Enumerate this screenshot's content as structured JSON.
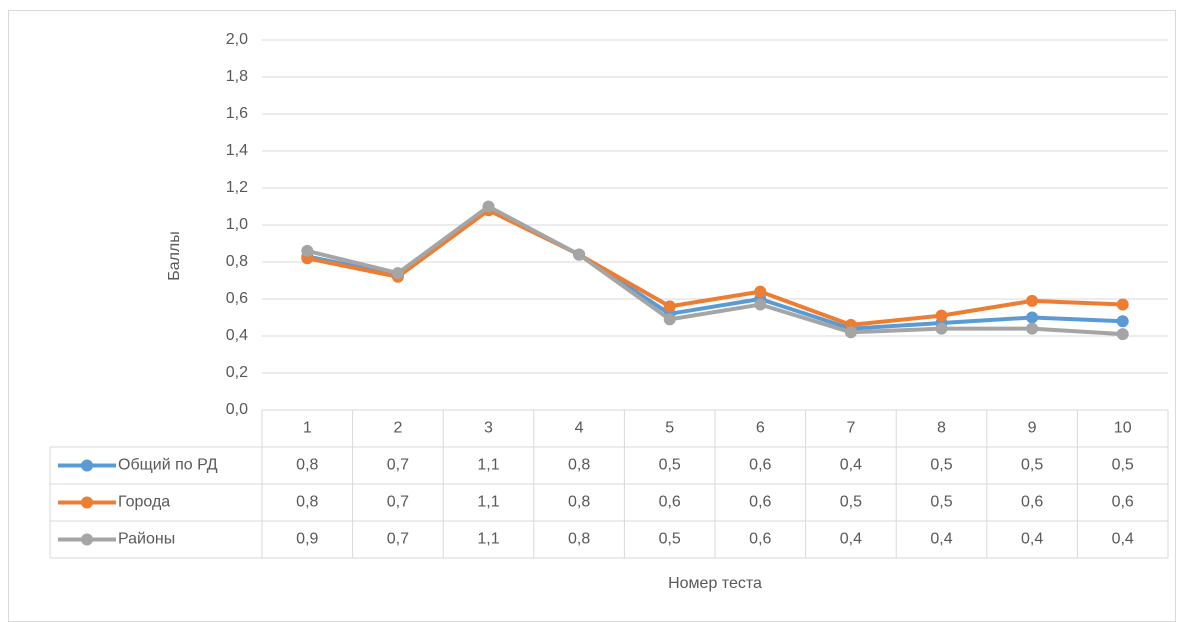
{
  "chart_data": {
    "type": "line",
    "x_label": "Номер теста",
    "y_label": "Баллы",
    "categories": [
      "1",
      "2",
      "3",
      "4",
      "5",
      "6",
      "7",
      "8",
      "9",
      "10"
    ],
    "series": [
      {
        "name": "Общий по РД",
        "color": "#5b9bd5",
        "values": [
          0.83,
          0.73,
          1.09,
          0.84,
          0.52,
          0.6,
          0.44,
          0.47,
          0.5,
          0.48
        ],
        "value_labels": [
          "0,8",
          "0,7",
          "1,1",
          "0,8",
          "0,5",
          "0,6",
          "0,4",
          "0,5",
          "0,5",
          "0,5"
        ]
      },
      {
        "name": "Города",
        "color": "#ed7d31",
        "values": [
          0.82,
          0.72,
          1.08,
          0.84,
          0.56,
          0.64,
          0.46,
          0.51,
          0.59,
          0.57
        ],
        "value_labels": [
          "0,8",
          "0,7",
          "1,1",
          "0,8",
          "0,6",
          "0,6",
          "0,5",
          "0,5",
          "0,6",
          "0,6"
        ]
      },
      {
        "name": "Районы",
        "color": "#a5a5a5",
        "values": [
          0.86,
          0.74,
          1.1,
          0.84,
          0.49,
          0.57,
          0.42,
          0.44,
          0.44,
          0.41
        ],
        "value_labels": [
          "0,9",
          "0,7",
          "1,1",
          "0,8",
          "0,5",
          "0,6",
          "0,4",
          "0,4",
          "0,4",
          "0,4"
        ]
      }
    ],
    "ylim": [
      0,
      2
    ],
    "yticks": [
      {
        "value": 0,
        "label": "0,0"
      },
      {
        "value": 0.2,
        "label": "0,2"
      },
      {
        "value": 0.4,
        "label": "0,4"
      },
      {
        "value": 0.6,
        "label": "0,6"
      },
      {
        "value": 0.8,
        "label": "0,8"
      },
      {
        "value": 1.0,
        "label": "1,0"
      },
      {
        "value": 1.2,
        "label": "1,2"
      },
      {
        "value": 1.4,
        "label": "1,4"
      },
      {
        "value": 1.6,
        "label": "1,6"
      },
      {
        "value": 1.8,
        "label": "1,8"
      },
      {
        "value": 2.0,
        "label": "2,0"
      }
    ],
    "grid": true
  }
}
